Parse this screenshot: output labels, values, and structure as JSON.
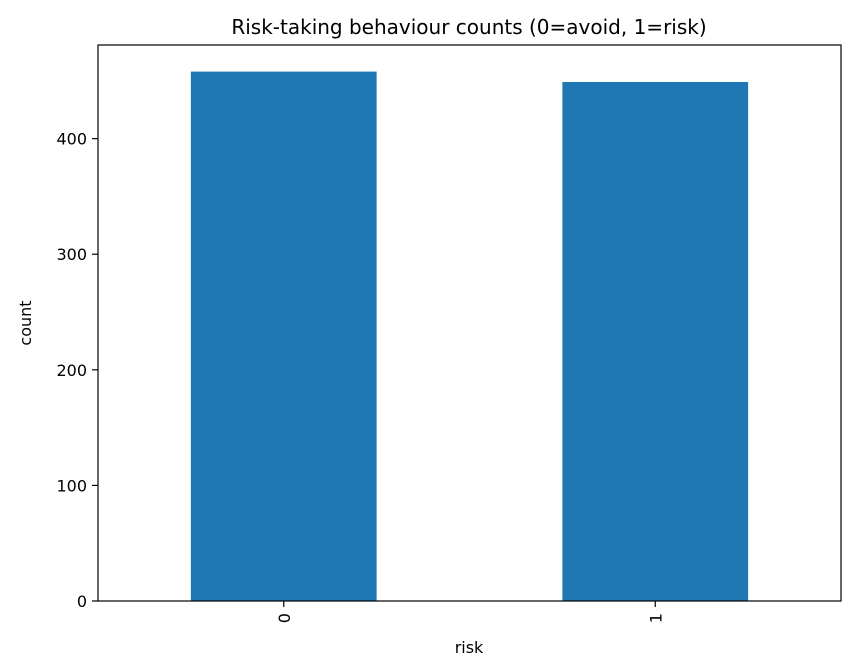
{
  "chart_data": {
    "type": "bar",
    "title": "Risk-taking behaviour counts (0=avoid, 1=risk)",
    "xlabel": "risk",
    "ylabel": "count",
    "categories": [
      "0",
      "1"
    ],
    "values": [
      458,
      449
    ],
    "ylim": [
      0,
      481
    ],
    "yticks": [
      0,
      100,
      200,
      300,
      400
    ],
    "grid": false,
    "legend": "none",
    "bar_color": "#1f77b4",
    "x_tick_rotation": "vertical"
  }
}
